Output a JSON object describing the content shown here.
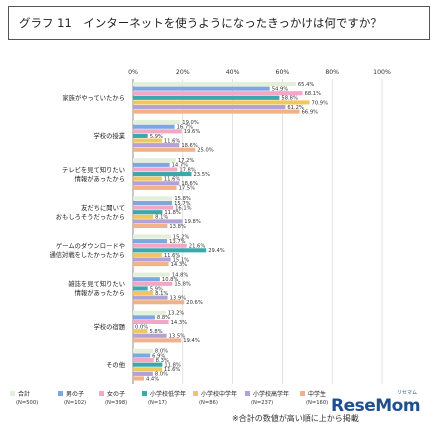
{
  "title": "グラフ 11　インターネットを使うようになったきっかけは何ですか？",
  "footnote": "※合計の数値が高い順に上から掲載",
  "brand": "ReseMom",
  "brand_sub": "リセマム",
  "colors": {
    "合計": "#e3efd9",
    "男の子": "#7ea6e0",
    "女の子": "#f3a6c6",
    "小学校低学年": "#3aa9ad",
    "小学校中学年": "#f0c75e",
    "小学校高学年": "#b3a2d8",
    "中学生": "#f2b189"
  },
  "chart_data": {
    "type": "bar",
    "orientation": "horizontal",
    "xlim": [
      0,
      100
    ],
    "x_ticks": [
      "0%",
      "20%",
      "40%",
      "60%",
      "80%",
      "100%"
    ],
    "categories": [
      "家族がやっていたから",
      "学校の授業",
      "テレビを見て知りたい 情報があったから",
      "友だちに聞いて おもしろそうだったから",
      "ゲームのダウンロードや 通信対戦をしたかったから",
      "雑誌を見て知りたい 情報があったから",
      "学校の宿題",
      "その他"
    ],
    "series": [
      {
        "name": "合計",
        "sub": "(N=500)",
        "values": [
          65.4,
          19.0,
          17.2,
          15.8,
          15.2,
          14.8,
          13.2,
          8.0
        ]
      },
      {
        "name": "男の子",
        "sub": "(N=102)",
        "values": [
          54.9,
          16.7,
          14.7,
          15.7,
          13.7,
          10.8,
          8.8,
          6.9
        ]
      },
      {
        "name": "女の子",
        "sub": "(N=398)",
        "values": [
          68.1,
          19.6,
          17.8,
          16.1,
          21.6,
          15.8,
          14.3,
          8.3
        ]
      },
      {
        "name": "小学校低学年",
        "sub": "(N=17)",
        "values": [
          58.8,
          5.9,
          23.5,
          11.8,
          29.4,
          5.9,
          0.0,
          11.8
        ]
      },
      {
        "name": "小学校中学年",
        "sub": "(N=86)",
        "values": [
          70.9,
          11.6,
          11.6,
          8.1,
          11.6,
          8.1,
          5.8,
          11.6
        ]
      },
      {
        "name": "小学校高学年",
        "sub": "(N=237)",
        "values": [
          61.2,
          18.6,
          18.6,
          19.8,
          15.1,
          13.9,
          13.5,
          8.0
        ]
      },
      {
        "name": "中学生",
        "sub": "(N=160)",
        "values": [
          66.9,
          25.0,
          17.5,
          13.8,
          14.3,
          20.6,
          19.4,
          4.4
        ]
      }
    ],
    "value_labels": [
      [
        "65.4%",
        "54.9%",
        "68.1%",
        "58.8%",
        "70.9%",
        "61.2%",
        "66.9%"
      ],
      [
        "19.0%",
        "16.7%",
        "19.6%",
        "5.9%",
        "11.6%",
        "18.6%",
        "25.0%"
      ],
      [
        "17.2%",
        "14.7%",
        "17.8%",
        "23.5%",
        "11.6%",
        "18.6%",
        "17.5%"
      ],
      [
        "15.8%",
        "15.7%",
        "16.1%",
        "11.8%",
        "8.1%",
        "19.8%",
        "13.8%"
      ],
      [
        "15.2%",
        "13.7%",
        "21.6%",
        "29.4%",
        "11.6%",
        "15.1%",
        "14.3%"
      ],
      [
        "14.8%",
        "10.8%",
        "15.8%",
        "5.9%",
        "8.1%",
        "13.9%",
        "20.6%"
      ],
      [
        "13.2%",
        "8.8%",
        "14.3%",
        "0.0%",
        "5.8%",
        "13.5%",
        "19.4%"
      ],
      [
        "8.0%",
        "6.9%",
        "8.3%",
        "11.8%",
        "11.6%",
        "8.0%",
        "4.4%"
      ]
    ],
    "legend_position": "bottom",
    "grid": true
  }
}
